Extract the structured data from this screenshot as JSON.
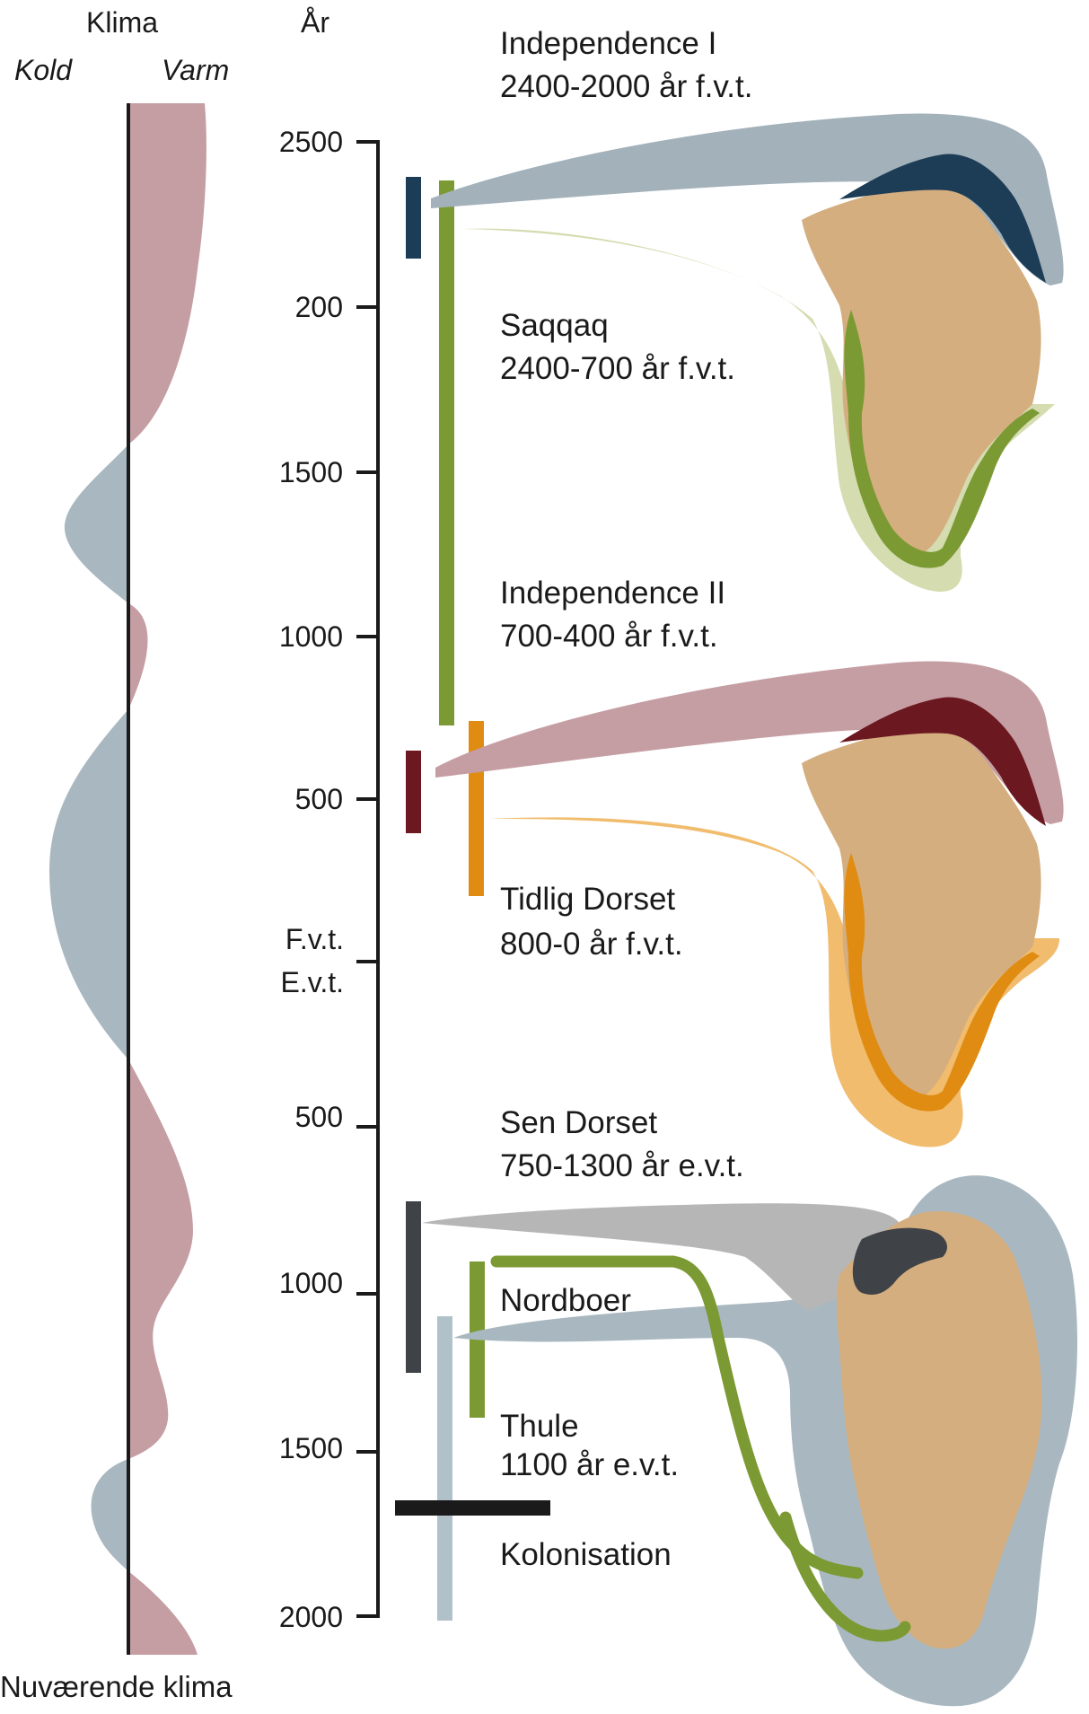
{
  "header": {
    "klima": "Klima",
    "kold": "Kold",
    "varm": "Varm",
    "aar": "År"
  },
  "footer": {
    "current_climate": "Nuværende klima"
  },
  "axis": {
    "ticks": [
      "2500",
      "200",
      "1500",
      "1000",
      "500",
      "500",
      "1000",
      "1500",
      "2000"
    ],
    "era_before": "F.v.t.",
    "era_after": "E.v.t."
  },
  "cultures": [
    {
      "name": "Independence I",
      "period": "2400-2000 år f.v.t.",
      "color": "#1d3d56"
    },
    {
      "name": "Saqqaq",
      "period": "2400-700 år f.v.t.",
      "color": "#7b9a33"
    },
    {
      "name": "Independence II",
      "period": "700-400 år f.v.t.",
      "color": "#6b1820"
    },
    {
      "name": "Tidlig Dorset",
      "period": "800-0 år f.v.t.",
      "color": "#e08c12"
    },
    {
      "name": "Sen Dorset",
      "period": "750-1300 år e.v.t.",
      "color": "#3f4347"
    },
    {
      "name": "Nordboer",
      "period": "",
      "color": "#7b9a33"
    },
    {
      "name": "Thule",
      "period": "1100 år e.v.t.",
      "color": "#b0c1ca"
    },
    {
      "name": "Kolonisation",
      "period": "",
      "color": "#1a1a1a"
    }
  ],
  "colors": {
    "warm": "#c59ea3",
    "cold": "#a9b8c0",
    "land": "#d4ae7e",
    "axis": "#1a1a1a"
  }
}
